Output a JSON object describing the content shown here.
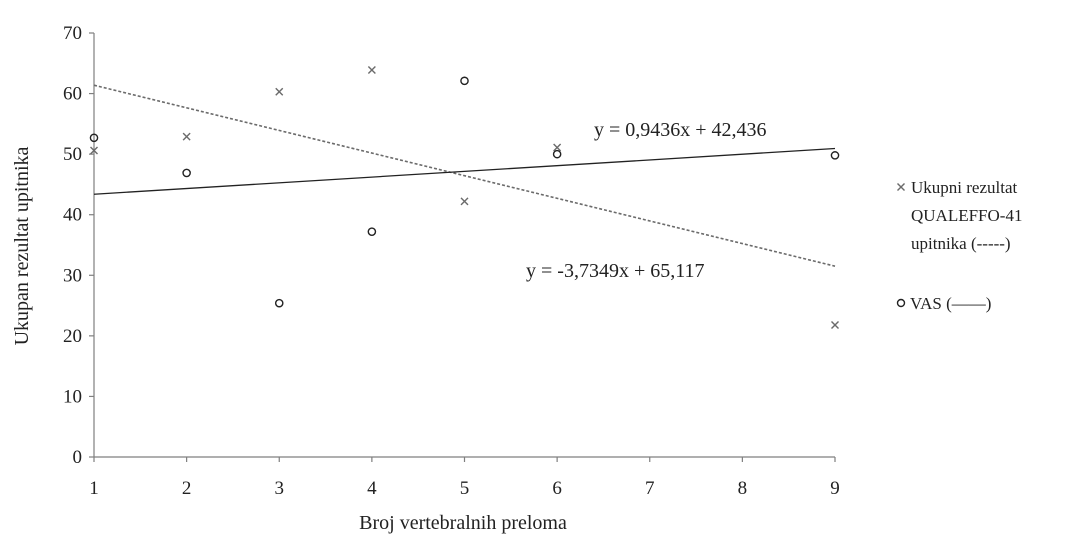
{
  "chart_data": {
    "type": "scatter",
    "xlabel": "Broj vertebralnih preloma",
    "ylabel": "Ukupan rezultat upitnika",
    "xlim": [
      1,
      9
    ],
    "ylim": [
      0,
      70
    ],
    "xticks": [
      1,
      2,
      3,
      4,
      5,
      6,
      7,
      8,
      9
    ],
    "yticks": [
      0,
      10,
      20,
      30,
      40,
      50,
      60,
      70
    ],
    "grid": false,
    "legend_position": "right",
    "series": [
      {
        "name": "Ukupni rezultat QUALEFFO-41 upitnika (-----)",
        "legend_lines": [
          "Ukupni rezultat",
          "QUALEFFO-41",
          "upitnika (-----)"
        ],
        "marker": "x",
        "trendline": "dashed",
        "trendline_equation": "y = -3,7349x + 65,117",
        "slope": -3.7349,
        "intercept": 65.117,
        "color": "#6b6b6b",
        "points": [
          {
            "x": 1,
            "y": 50.6
          },
          {
            "x": 2,
            "y": 52.9
          },
          {
            "x": 3,
            "y": 60.3
          },
          {
            "x": 4,
            "y": 63.9
          },
          {
            "x": 5,
            "y": 42.2
          },
          {
            "x": 6,
            "y": 51.1
          },
          {
            "x": 9,
            "y": 21.8
          }
        ]
      },
      {
        "name": "VAS (——)",
        "legend_lines": [
          "VAS (——)"
        ],
        "marker": "o",
        "trendline": "solid",
        "trendline_equation": "y = 0,9436x + 42,436",
        "slope": 0.9436,
        "intercept": 42.436,
        "color": "#222222",
        "points": [
          {
            "x": 1,
            "y": 52.7
          },
          {
            "x": 2,
            "y": 46.9
          },
          {
            "x": 3,
            "y": 25.4
          },
          {
            "x": 4,
            "y": 37.2
          },
          {
            "x": 5,
            "y": 62.1
          },
          {
            "x": 6,
            "y": 50.0
          },
          {
            "x": 9,
            "y": 49.8
          }
        ]
      }
    ]
  }
}
